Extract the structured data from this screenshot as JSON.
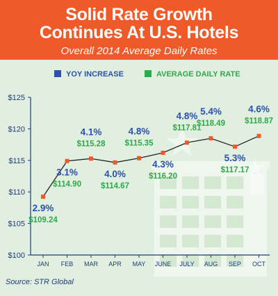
{
  "header": {
    "title_line1": "Solid Rate Growth",
    "title_line2": "Continues At U.S. Hotels",
    "subtitle": "Overall 2014 Average Daily Rates"
  },
  "source": "Source: STR Global",
  "colors": {
    "banner": "#f05a28",
    "yoy": "#2a52a8",
    "adr": "#2eaa4a",
    "line": "#222222",
    "marker": "#f05a28",
    "axis": "#1f3a78"
  },
  "chart_data": {
    "type": "line",
    "title": "Overall 2014 Average Daily Rates",
    "xlabel": "",
    "ylabel": "",
    "categories": [
      "JAN",
      "FEB",
      "MAR",
      "APR",
      "MAY",
      "JUNE",
      "JULY",
      "AUG",
      "SEP",
      "OCT"
    ],
    "ylim": [
      100,
      125
    ],
    "yticks": [
      "$100",
      "$105",
      "$110",
      "$115",
      "$120",
      "$125"
    ],
    "yticks_values": [
      100,
      105,
      110,
      115,
      120,
      125
    ],
    "legend": [
      "YOY INCREASE",
      "AVERAGE DAILY RATE"
    ],
    "legend_position": "top",
    "series": [
      {
        "name": "AVERAGE DAILY RATE",
        "values": [
          109.24,
          114.9,
          115.28,
          114.67,
          115.35,
          116.2,
          117.81,
          118.49,
          117.17,
          118.87
        ],
        "labels": [
          "$109.24",
          "$114.90",
          "$115.28",
          "$114.67",
          "$115.35",
          "$116.20",
          "$117.81",
          "$118.49",
          "$117.17",
          "$118.87"
        ]
      },
      {
        "name": "YOY INCREASE",
        "values": [
          2.9,
          3.1,
          4.1,
          4.0,
          4.8,
          4.3,
          4.8,
          5.4,
          5.3,
          4.6
        ],
        "labels": [
          "2.9%",
          "3.1%",
          "4.1%",
          "4.0%",
          "4.8%",
          "4.3%",
          "4.8%",
          "5.4%",
          "5.3%",
          "4.6%"
        ]
      }
    ]
  }
}
